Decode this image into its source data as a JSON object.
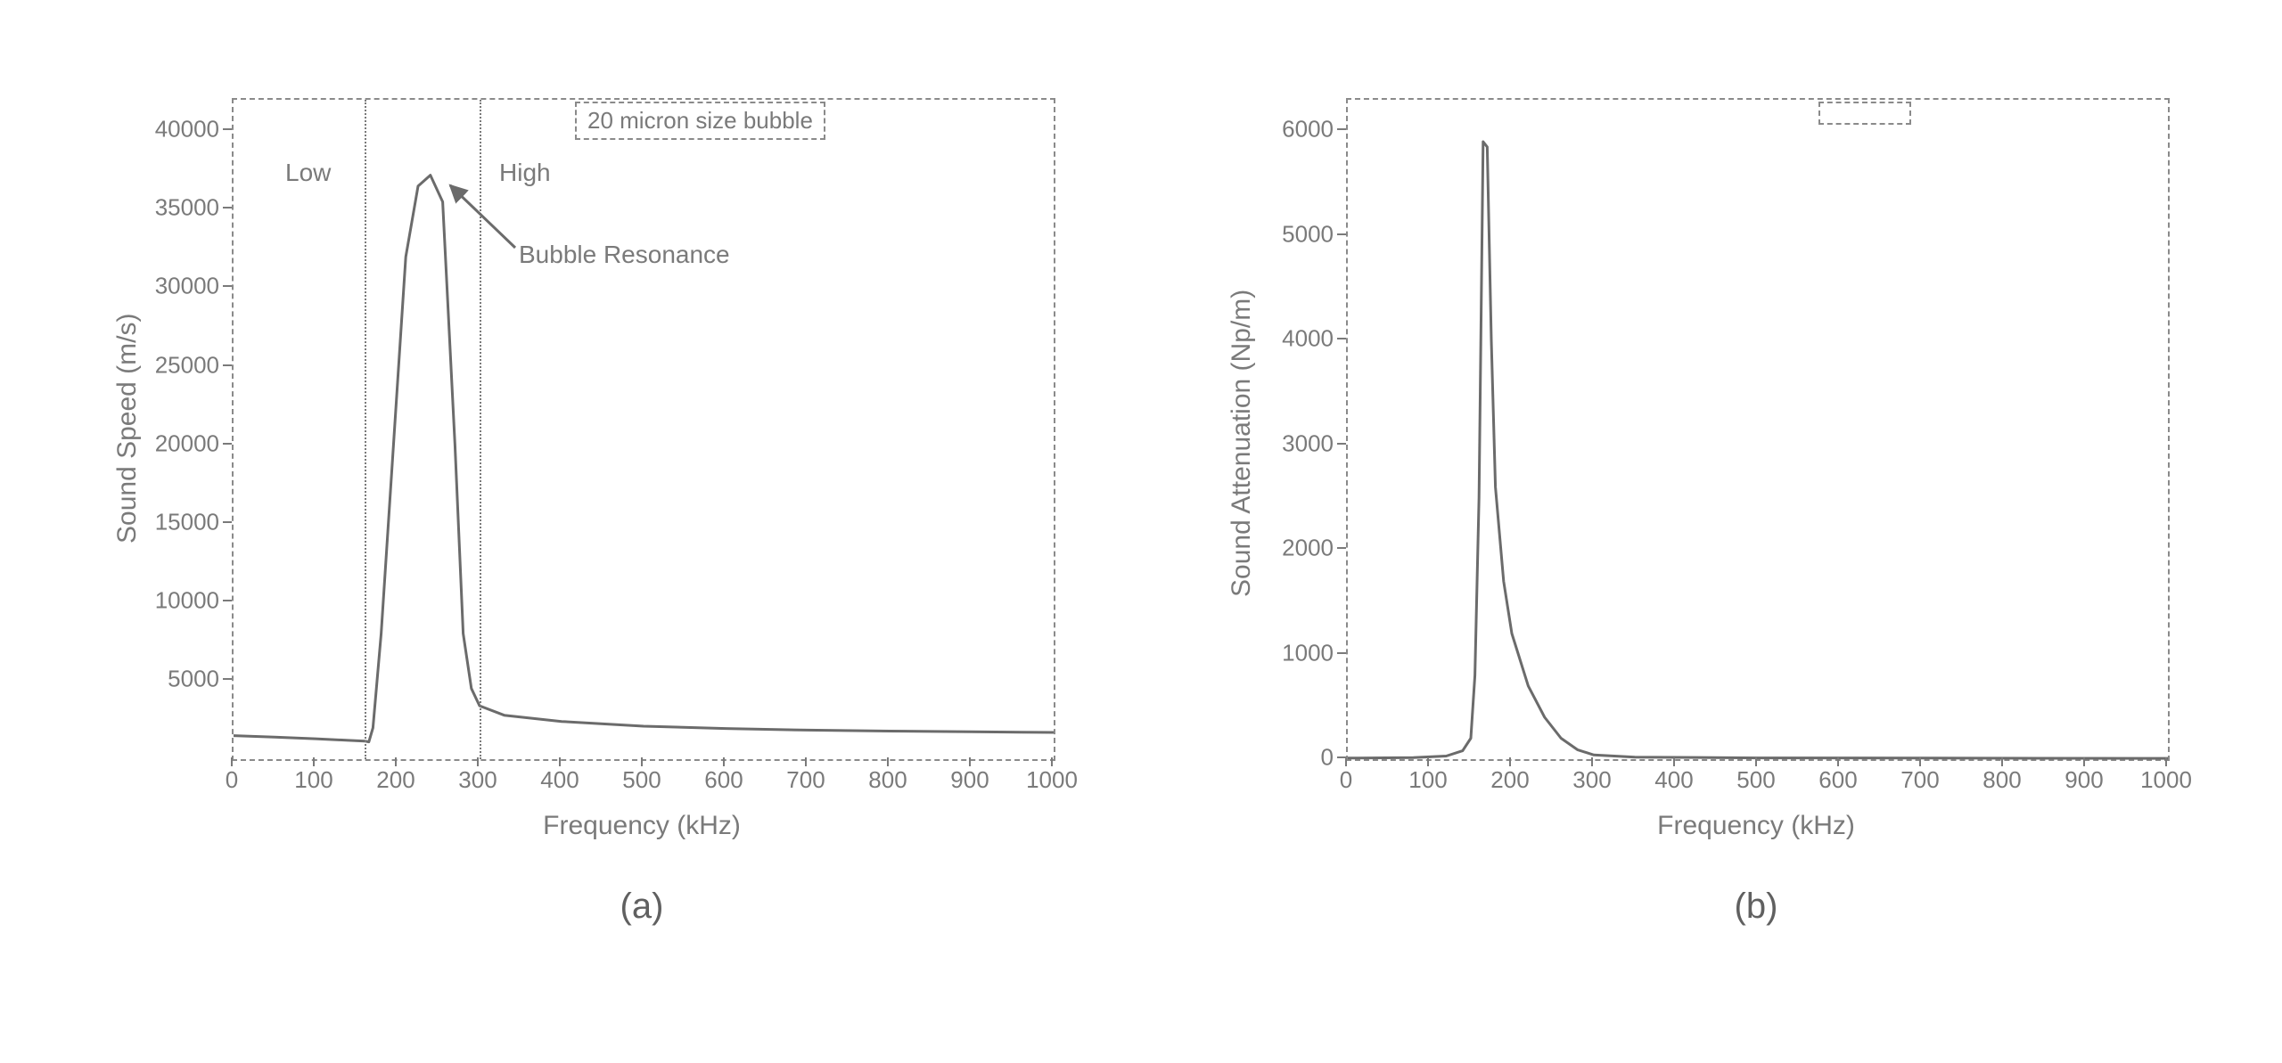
{
  "chart_a": {
    "type": "line",
    "caption": "(a)",
    "xlabel": "Frequency (kHz)",
    "ylabel": "Sound Speed (m/s)",
    "legend_text": "20 micron size bubble",
    "xlim": [
      0,
      1000
    ],
    "ylim": [
      0,
      42000
    ],
    "xticks": [
      0,
      100,
      200,
      300,
      400,
      500,
      600,
      700,
      800,
      900,
      1000
    ],
    "yticks": [
      5000,
      10000,
      15000,
      20000,
      25000,
      30000,
      35000,
      40000
    ],
    "line_color": "#6b6b6b",
    "line_width": 3,
    "background_color": "#ffffff",
    "border_color": "#8a8a8a",
    "text_color": "#7a7a7a",
    "label_fontsize": 30,
    "tick_fontsize": 26,
    "vlines": [
      160,
      300
    ],
    "annotations": {
      "low": "Low",
      "high": "High",
      "resonance": "Bubble Resonance"
    },
    "series": [
      {
        "x": 0,
        "y": 1500
      },
      {
        "x": 50,
        "y": 1400
      },
      {
        "x": 100,
        "y": 1300
      },
      {
        "x": 140,
        "y": 1200
      },
      {
        "x": 160,
        "y": 1150
      },
      {
        "x": 165,
        "y": 1100
      },
      {
        "x": 170,
        "y": 2000
      },
      {
        "x": 180,
        "y": 8000
      },
      {
        "x": 195,
        "y": 20000
      },
      {
        "x": 210,
        "y": 32000
      },
      {
        "x": 225,
        "y": 36500
      },
      {
        "x": 240,
        "y": 37200
      },
      {
        "x": 255,
        "y": 35500
      },
      {
        "x": 270,
        "y": 20000
      },
      {
        "x": 280,
        "y": 8000
      },
      {
        "x": 290,
        "y": 4500
      },
      {
        "x": 300,
        "y": 3400
      },
      {
        "x": 330,
        "y": 2800
      },
      {
        "x": 400,
        "y": 2400
      },
      {
        "x": 500,
        "y": 2100
      },
      {
        "x": 600,
        "y": 1950
      },
      {
        "x": 700,
        "y": 1850
      },
      {
        "x": 800,
        "y": 1790
      },
      {
        "x": 900,
        "y": 1740
      },
      {
        "x": 1000,
        "y": 1700
      }
    ]
  },
  "chart_b": {
    "type": "line",
    "caption": "(b)",
    "xlabel": "Frequency (kHz)",
    "ylabel": "Sound Attenuation (Np/m)",
    "xlim": [
      0,
      1000
    ],
    "ylim": [
      0,
      6300
    ],
    "xticks": [
      0,
      100,
      200,
      300,
      400,
      500,
      600,
      700,
      800,
      900,
      1000
    ],
    "yticks": [
      0,
      1000,
      2000,
      3000,
      4000,
      5000,
      6000
    ],
    "line_color": "#6b6b6b",
    "line_width": 3,
    "background_color": "#ffffff",
    "border_color": "#8a8a8a",
    "text_color": "#7a7a7a",
    "label_fontsize": 30,
    "tick_fontsize": 26,
    "series": [
      {
        "x": 0,
        "y": 10
      },
      {
        "x": 80,
        "y": 15
      },
      {
        "x": 120,
        "y": 30
      },
      {
        "x": 140,
        "y": 80
      },
      {
        "x": 150,
        "y": 200
      },
      {
        "x": 155,
        "y": 800
      },
      {
        "x": 160,
        "y": 2500
      },
      {
        "x": 165,
        "y": 5900
      },
      {
        "x": 170,
        "y": 5850
      },
      {
        "x": 175,
        "y": 4000
      },
      {
        "x": 180,
        "y": 2600
      },
      {
        "x": 190,
        "y": 1700
      },
      {
        "x": 200,
        "y": 1200
      },
      {
        "x": 220,
        "y": 700
      },
      {
        "x": 240,
        "y": 400
      },
      {
        "x": 260,
        "y": 200
      },
      {
        "x": 280,
        "y": 90
      },
      {
        "x": 300,
        "y": 40
      },
      {
        "x": 350,
        "y": 20
      },
      {
        "x": 500,
        "y": 12
      },
      {
        "x": 1000,
        "y": 8
      }
    ]
  }
}
